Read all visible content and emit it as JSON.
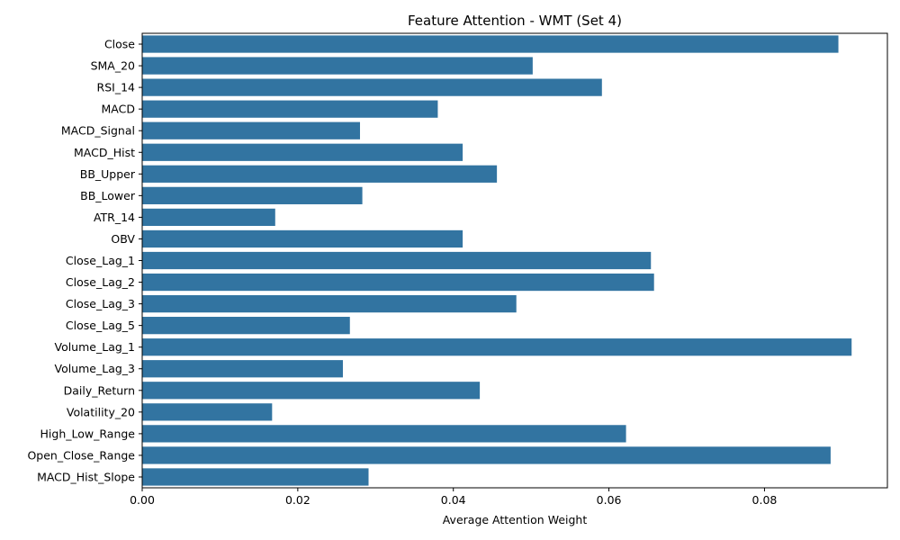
{
  "chart_data": {
    "type": "bar",
    "orientation": "horizontal",
    "title": "Feature Attention - WMT (Set 4)",
    "xlabel": "Average Attention Weight",
    "ylabel": "",
    "xlim": [
      0,
      0.0958
    ],
    "xticks": [
      0.0,
      0.02,
      0.04,
      0.06,
      0.08
    ],
    "xtick_labels": [
      "0.00",
      "0.02",
      "0.04",
      "0.06",
      "0.08"
    ],
    "grid": false,
    "bar_color": "#3274a1",
    "categories": [
      "Close",
      "SMA_20",
      "RSI_14",
      "MACD",
      "MACD_Signal",
      "MACD_Hist",
      "BB_Upper",
      "BB_Lower",
      "ATR_14",
      "OBV",
      "Close_Lag_1",
      "Close_Lag_2",
      "Close_Lag_3",
      "Close_Lag_5",
      "Volume_Lag_1",
      "Volume_Lag_3",
      "Daily_Return",
      "Volatility_20",
      "High_Low_Range",
      "Open_Close_Range",
      "MACD_Hist_Slope"
    ],
    "values": [
      0.0895,
      0.0502,
      0.0591,
      0.038,
      0.028,
      0.0412,
      0.0456,
      0.0283,
      0.0171,
      0.0412,
      0.0654,
      0.0658,
      0.0481,
      0.0267,
      0.0912,
      0.0258,
      0.0434,
      0.0167,
      0.0622,
      0.0885,
      0.0291
    ]
  }
}
